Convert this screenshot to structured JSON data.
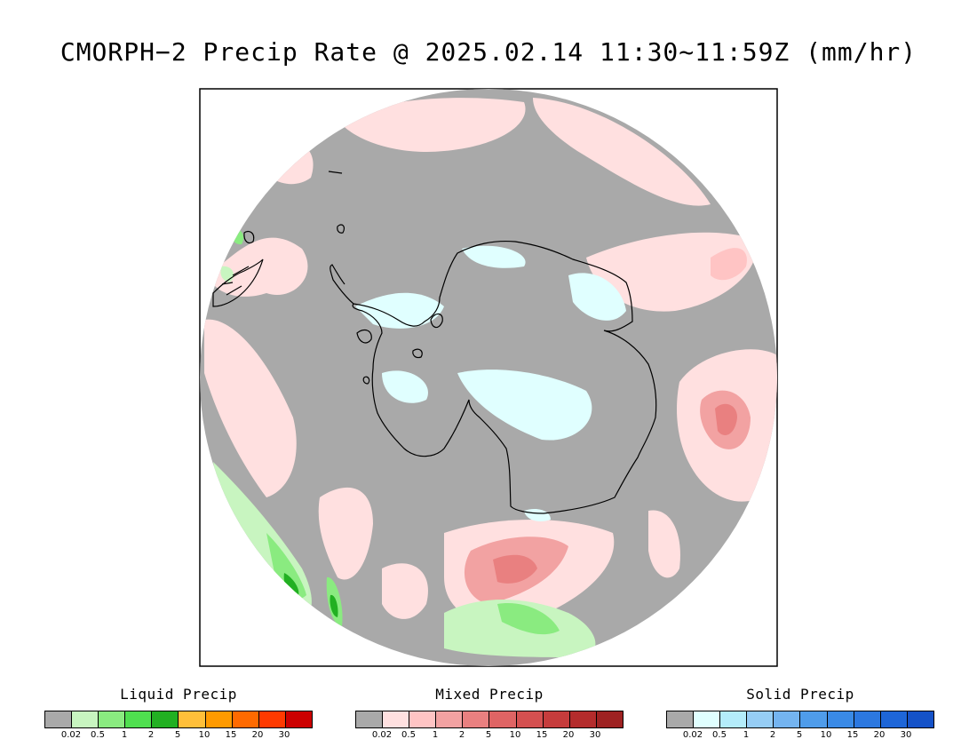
{
  "title": "CMORPH−2 Precip Rate @ 2025.02.14 11:30~11:59Z (mm/hr)",
  "map": {
    "projection": "south-polar-stereographic",
    "background_color": "#a9a9a9",
    "coastline_color": "#000000"
  },
  "legends": [
    {
      "id": "liquid",
      "title": "Liquid Precip",
      "colors": [
        "#a9a9a9",
        "#c8f5c0",
        "#8aeb80",
        "#4fdf4f",
        "#22b022",
        "#ffbf3a",
        "#ff9a00",
        "#ff6a00",
        "#ff3a00",
        "#cc0000"
      ],
      "ticks": [
        "0.02",
        "0.5",
        "1",
        "2",
        "5",
        "10",
        "15",
        "20",
        "30"
      ]
    },
    {
      "id": "mixed",
      "title": "Mixed Precip",
      "colors": [
        "#a9a9a9",
        "#ffe0e0",
        "#ffc4c4",
        "#f2a2a2",
        "#e98080",
        "#df6464",
        "#d45050",
        "#c63c3c",
        "#b42c2c",
        "#9e2222"
      ],
      "ticks": [
        "0.02",
        "0.5",
        "1",
        "2",
        "5",
        "10",
        "15",
        "20",
        "30"
      ]
    },
    {
      "id": "solid",
      "title": "Solid Precip",
      "colors": [
        "#a9a9a9",
        "#e0ffff",
        "#b4ecfa",
        "#96cdf5",
        "#74b4f0",
        "#4f9cea",
        "#3a8ae6",
        "#2c78e0",
        "#1e66d8",
        "#1552c8"
      ],
      "ticks": [
        "0.02",
        "0.5",
        "1",
        "2",
        "5",
        "10",
        "15",
        "20",
        "30"
      ]
    }
  ]
}
